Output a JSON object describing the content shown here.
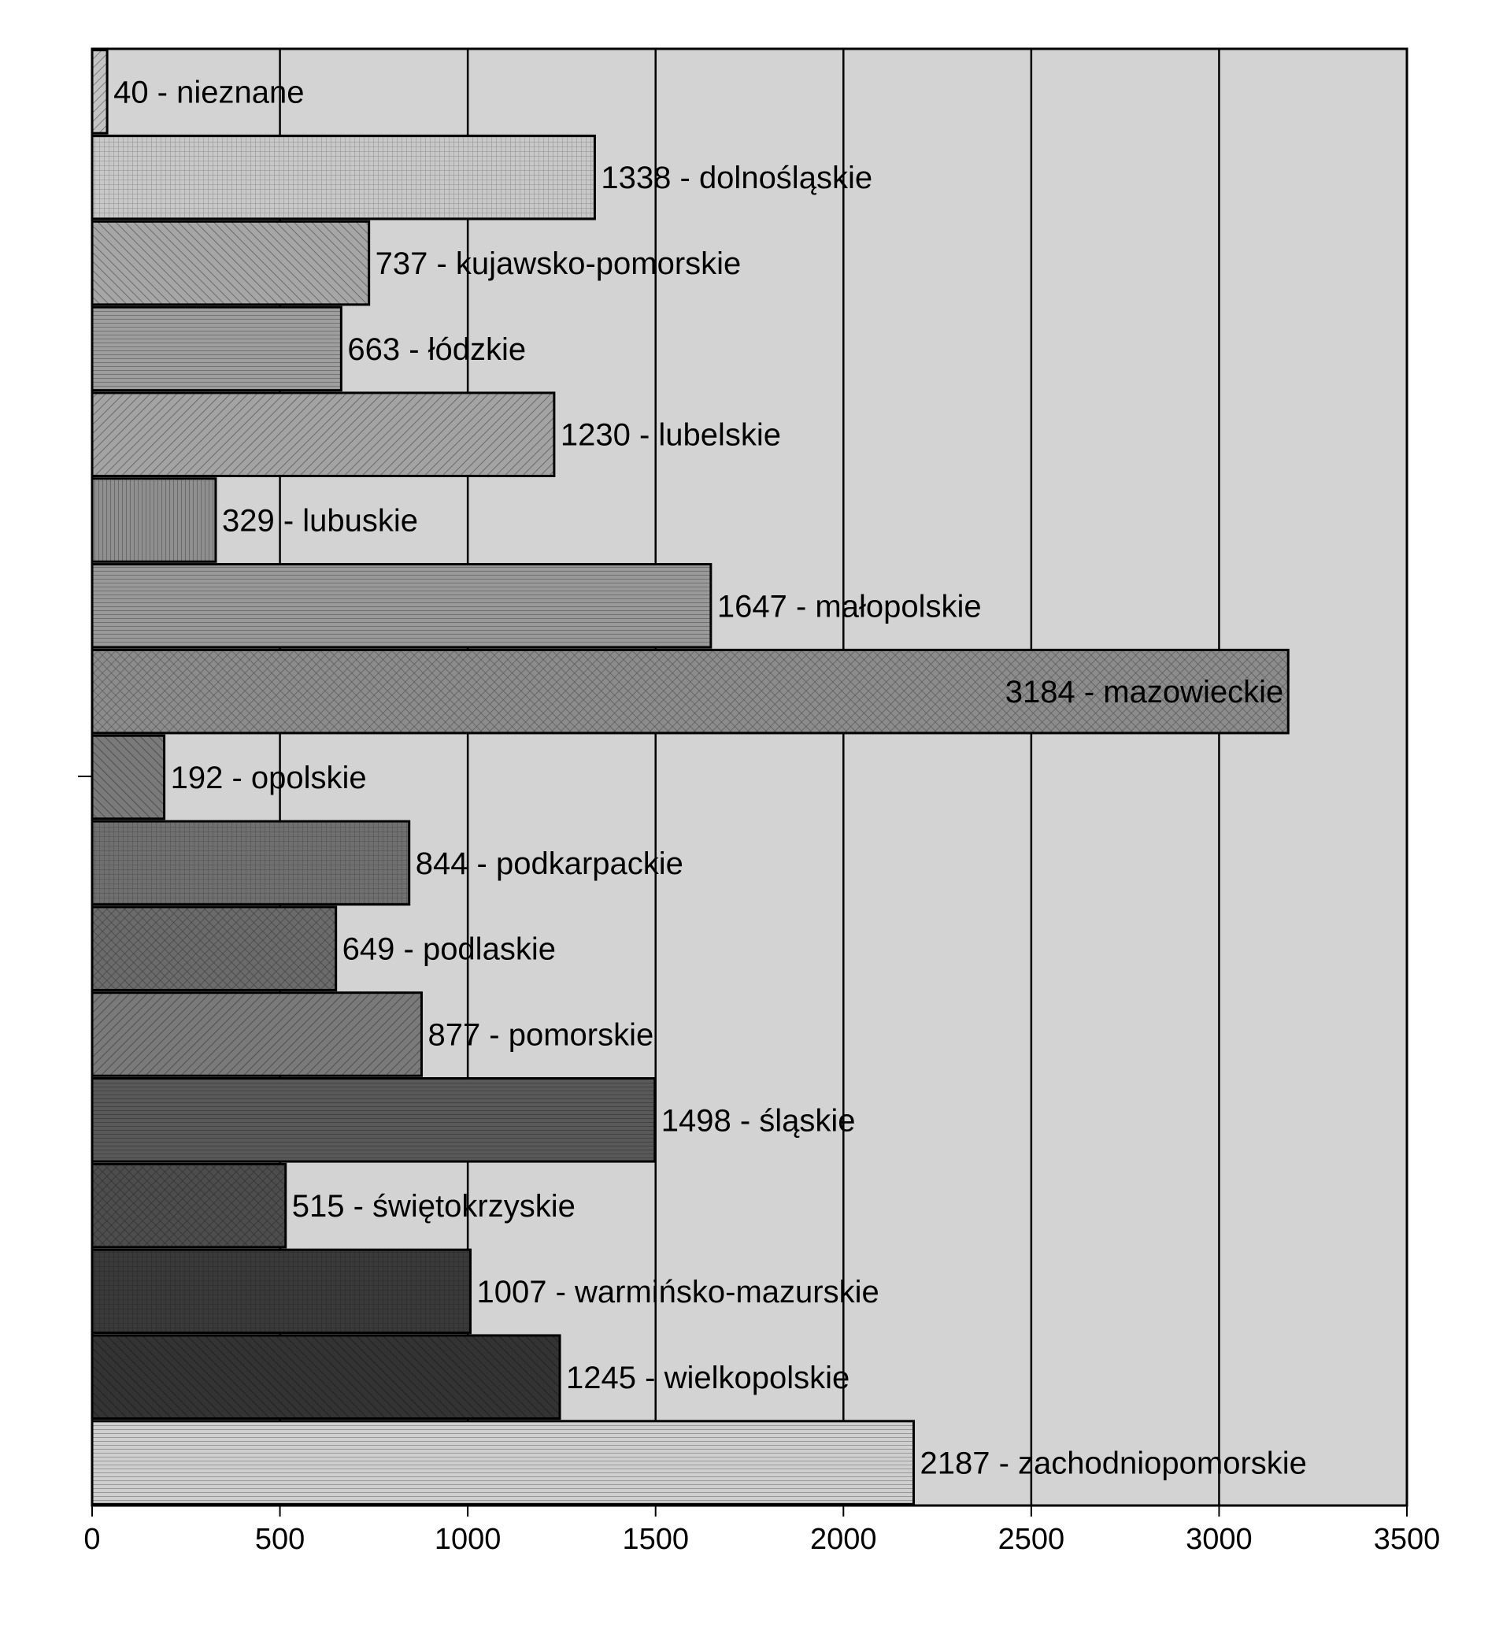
{
  "chart_data": {
    "type": "bar",
    "orientation": "horizontal",
    "title": "",
    "xlabel": "",
    "ylabel": "",
    "xlim": [
      0,
      3500
    ],
    "x_ticks": [
      0,
      500,
      1000,
      1500,
      2000,
      2500,
      3000,
      3500
    ],
    "grid": "vertical",
    "legend": "none",
    "plot_background": "#d3d3d3",
    "categories": [
      "nieznane",
      "dolnośląskie",
      "kujawsko-pomorskie",
      "łódzkie",
      "lubelskie",
      "lubuskie",
      "małopolskie",
      "mazowieckie",
      "opolskie",
      "podkarpackie",
      "podlaskie",
      "pomorskie",
      "śląskie",
      "świętokrzyskie",
      "warmińsko-mazurskie",
      "wielkopolskie",
      "zachodniopomorskie"
    ],
    "values": [
      40,
      1338,
      737,
      663,
      1230,
      329,
      1647,
      3184,
      192,
      844,
      649,
      877,
      1498,
      515,
      1007,
      1245,
      2187
    ],
    "labels": [
      "40 -    nieznane",
      "1338 - dolnośląskie",
      "737 - kujawsko-pomorskie",
      "663 - łódzkie",
      "1230 - lubelskie",
      "329 - lubuskie",
      "1647 - małopolskie",
      "3184 - mazowieckie",
      "192 - opolskie",
      "844 - podkarpackie",
      "649 - podlaskie",
      "877 - pomorskie",
      "1498 - śląskie",
      "515 - świętokrzyskie",
      "1007 - warmińsko-mazurskie",
      "1245 - wielkopolskie",
      "2187 - zachodniopomorskie"
    ],
    "bar_colors": [
      "#c4c4c4",
      "#c8c8c8",
      "#a6a6a6",
      "#9e9e9e",
      "#a3a3a3",
      "#8f8f8f",
      "#999999",
      "#8c8c8c",
      "#7a7a7a",
      "#707070",
      "#6b6b6b",
      "#7a7a7a",
      "#595959",
      "#4d4d4d",
      "#3a3a3a",
      "#333333",
      "#cfcfcf"
    ]
  }
}
